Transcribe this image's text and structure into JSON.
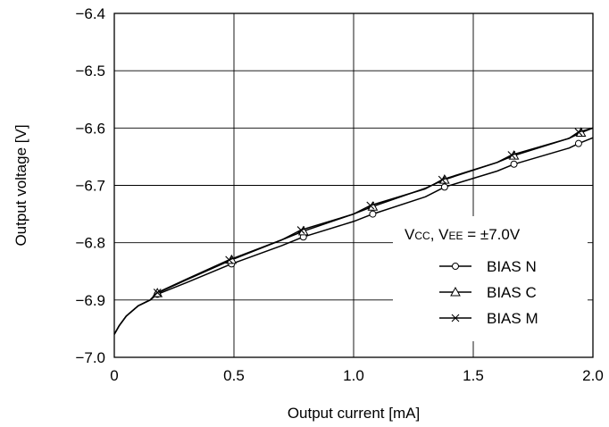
{
  "chart_data": {
    "type": "line",
    "xlabel": "Output current [mA]",
    "ylabel": "Output voltage [V]",
    "xlim": [
      0,
      2.0
    ],
    "ylim": [
      -7.0,
      -6.4
    ],
    "x_ticks": [
      "0",
      "0.5",
      "1.0",
      "1.5",
      "2.0"
    ],
    "y_ticks": [
      "−6.4",
      "−6.5",
      "−6.6",
      "−6.7",
      "−6.8",
      "−6.9",
      "−7.0"
    ],
    "grid": true,
    "legend_position": "right",
    "condition": {
      "v1": "V",
      "v1_sub": "CC",
      "sep": ", ",
      "v2": "V",
      "v2_sub": "EE",
      "value": " = ±7.0V"
    },
    "series": [
      {
        "name": "BIAS N",
        "marker": "circle",
        "x": [
          0.0,
          0.02,
          0.05,
          0.1,
          0.15,
          0.18,
          0.3,
          0.49,
          0.7,
          0.79,
          1.0,
          1.08,
          1.3,
          1.38,
          1.6,
          1.67,
          1.9,
          1.94,
          2.0
        ],
        "y": [
          -6.96,
          -6.945,
          -6.928,
          -6.91,
          -6.9,
          -6.89,
          -6.87,
          -6.837,
          -6.805,
          -6.79,
          -6.763,
          -6.75,
          -6.72,
          -6.703,
          -6.675,
          -6.663,
          -6.635,
          -6.627,
          -6.617
        ],
        "marker_x": [
          0.18,
          0.49,
          0.79,
          1.08,
          1.38,
          1.67,
          1.94
        ],
        "marker_y": [
          -6.89,
          -6.837,
          -6.79,
          -6.75,
          -6.703,
          -6.663,
          -6.627
        ]
      },
      {
        "name": "BIAS C",
        "marker": "triangle",
        "x": [
          0.0,
          0.02,
          0.05,
          0.1,
          0.15,
          0.18,
          0.3,
          0.49,
          0.7,
          0.79,
          1.0,
          1.08,
          1.3,
          1.38,
          1.6,
          1.67,
          1.9,
          1.95,
          2.0
        ],
        "y": [
          -6.96,
          -6.945,
          -6.928,
          -6.91,
          -6.9,
          -6.888,
          -6.865,
          -6.83,
          -6.795,
          -6.78,
          -6.75,
          -6.737,
          -6.705,
          -6.69,
          -6.66,
          -6.648,
          -6.618,
          -6.608,
          -6.6
        ],
        "marker_x": [
          0.18,
          0.49,
          0.79,
          1.08,
          1.38,
          1.67,
          1.95
        ],
        "marker_y": [
          -6.888,
          -6.83,
          -6.78,
          -6.737,
          -6.69,
          -6.648,
          -6.608
        ]
      },
      {
        "name": "BIAS M",
        "marker": "x",
        "x": [
          0.0,
          0.02,
          0.05,
          0.1,
          0.15,
          0.18,
          0.3,
          0.48,
          0.7,
          0.78,
          1.0,
          1.07,
          1.3,
          1.37,
          1.6,
          1.66,
          1.9,
          1.94,
          2.0
        ],
        "y": [
          -6.96,
          -6.945,
          -6.928,
          -6.91,
          -6.9,
          -6.887,
          -6.864,
          -6.83,
          -6.795,
          -6.778,
          -6.75,
          -6.735,
          -6.706,
          -6.69,
          -6.66,
          -6.647,
          -6.618,
          -6.607,
          -6.6
        ],
        "marker_x": [
          0.18,
          0.48,
          0.78,
          1.07,
          1.37,
          1.66,
          1.94
        ],
        "marker_y": [
          -6.887,
          -6.83,
          -6.778,
          -6.735,
          -6.69,
          -6.647,
          -6.607
        ]
      }
    ]
  }
}
